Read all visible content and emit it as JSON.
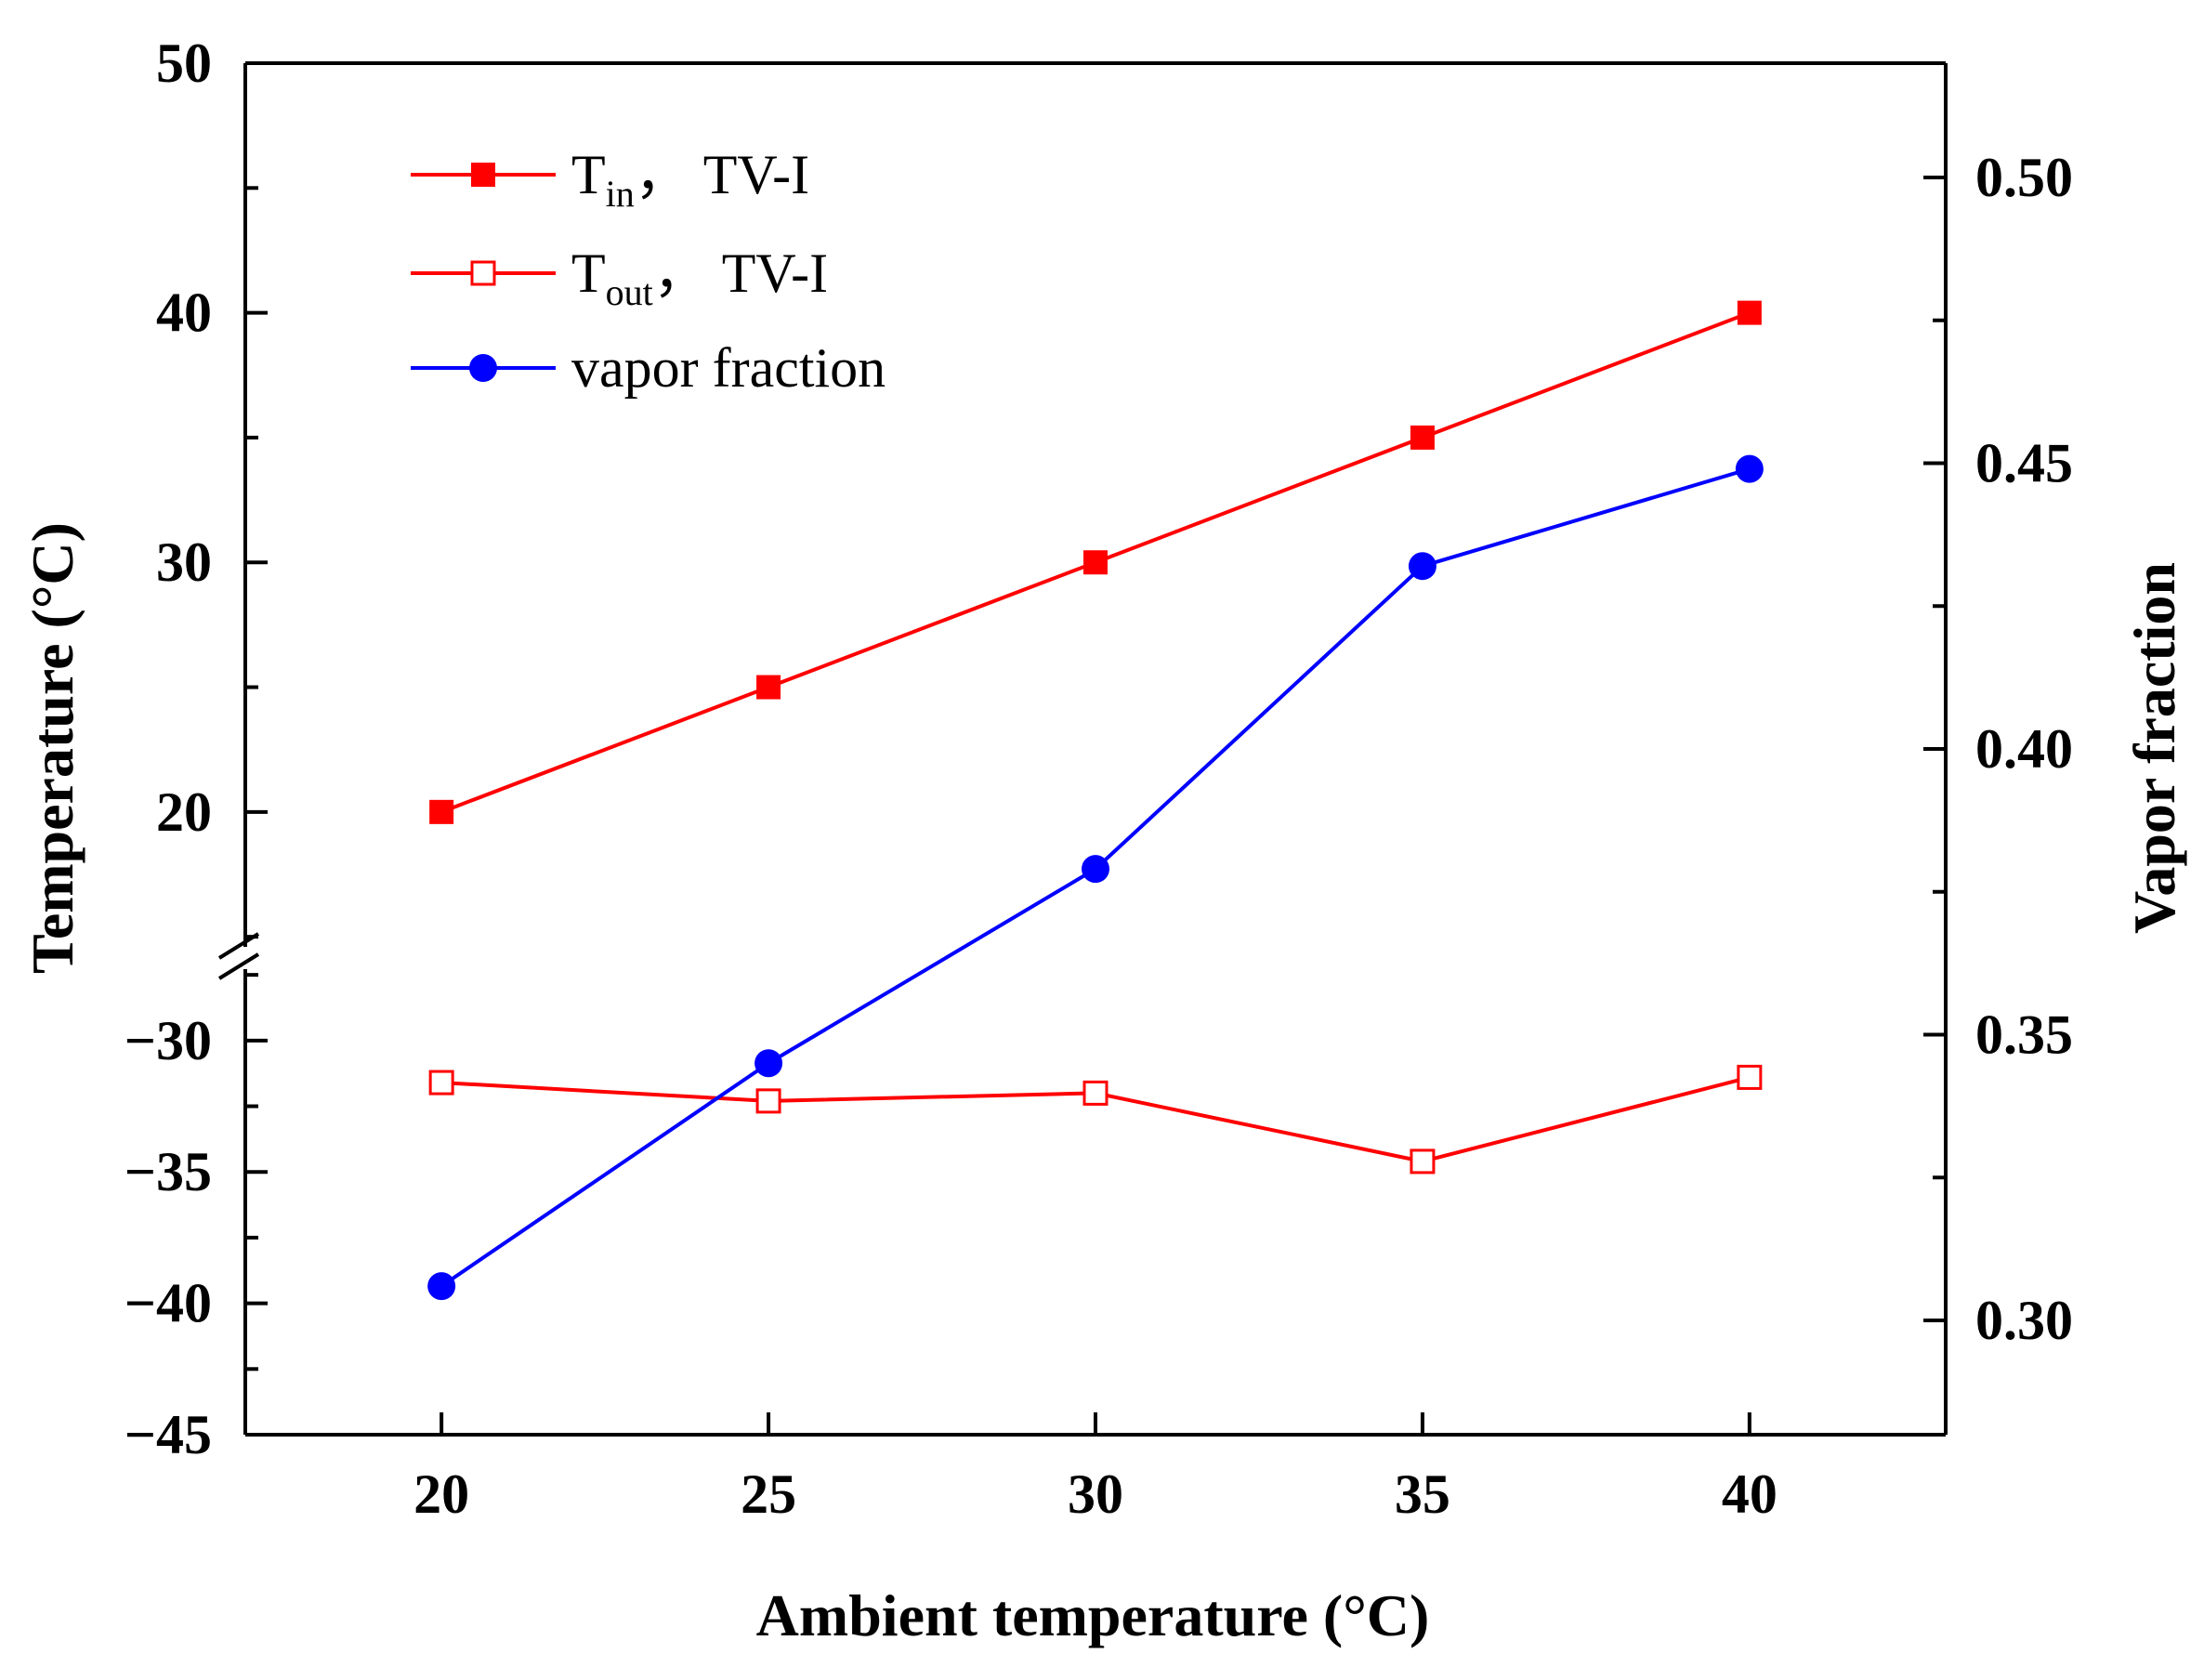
{
  "chart_data": {
    "type": "line",
    "title": "",
    "xlabel": "Ambient temperature (°C)",
    "ylabel_left": "Temperature (°C)",
    "ylabel_right": "Vapor fraction",
    "x": [
      20,
      25,
      30,
      35,
      40
    ],
    "xlim": [
      17,
      43
    ],
    "x_ticks": [
      "20",
      "25",
      "30",
      "35",
      "40"
    ],
    "y_left_upper": {
      "range": [
        14,
        50
      ],
      "ticks": [
        "20",
        "30",
        "40",
        "50"
      ]
    },
    "y_left_lower": {
      "range": [
        -45,
        -27
      ],
      "ticks": [
        "−30",
        "−35",
        "−40",
        "−45"
      ]
    },
    "axis_break": "left y-axis broken between -27 and 14",
    "y_right": {
      "range": [
        0.28,
        0.52
      ],
      "ticks": [
        "0.30",
        "0.35",
        "0.40",
        "0.45",
        "0.50"
      ]
    },
    "grid": false,
    "legend_position": "top-left",
    "series": [
      {
        "name": "T_in, TV-I",
        "label_main": "T",
        "label_sub": "in",
        "label_rest": "，  TV-I",
        "axis": "left",
        "marker": "filled-square",
        "color": "#ff0000",
        "values": [
          20,
          25,
          30,
          35,
          40
        ]
      },
      {
        "name": "T_out, TV-I",
        "label_main": "T",
        "label_sub": "out",
        "label_rest": "， TV-I",
        "axis": "left",
        "marker": "open-square",
        "color": "#ff0000",
        "values": [
          -31.6,
          -32.3,
          -32.0,
          -34.6,
          -31.4
        ]
      },
      {
        "name": "vapor fraction",
        "label_main": "vapor fraction",
        "label_sub": "",
        "label_rest": "",
        "axis": "right",
        "marker": "filled-circle",
        "color": "#0000ff",
        "values": [
          0.306,
          0.345,
          0.379,
          0.432,
          0.449
        ]
      }
    ]
  }
}
